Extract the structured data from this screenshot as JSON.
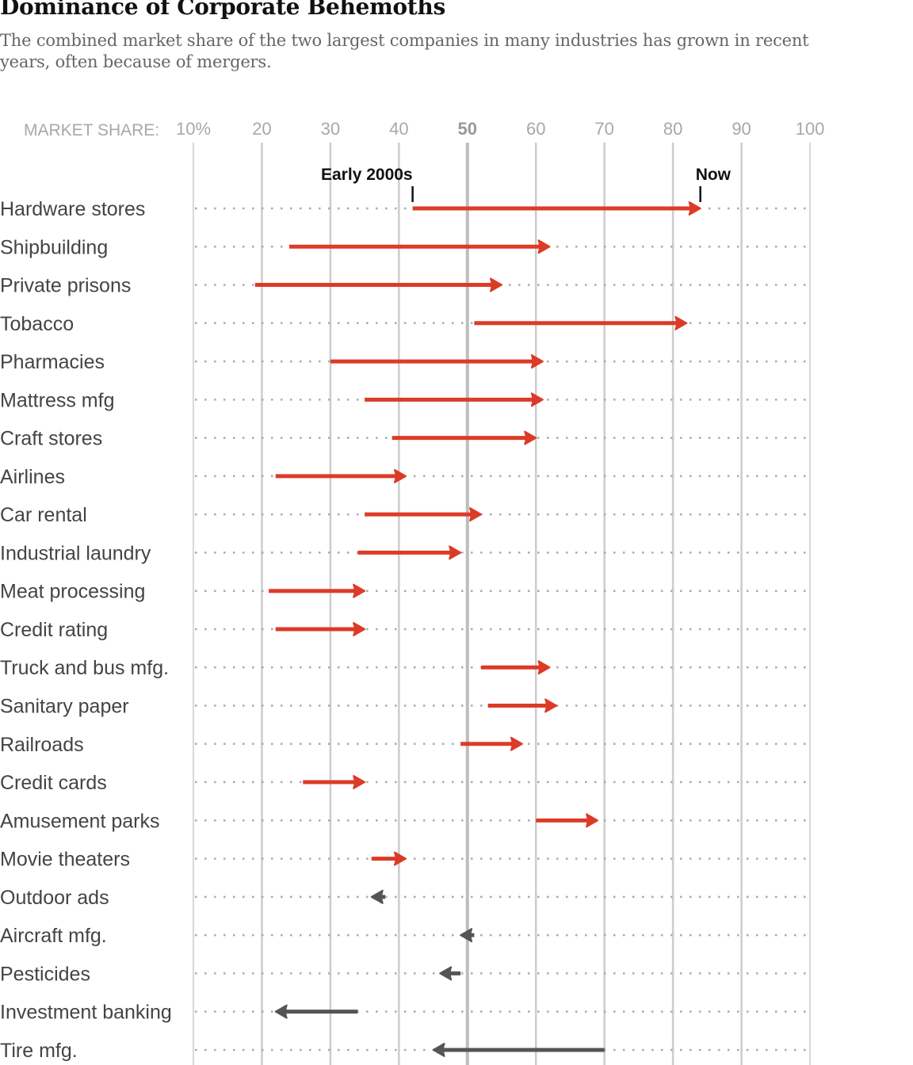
{
  "header": {
    "title": "Dominance of Corporate Behemoths",
    "subtitle": "The combined market share of the two largest companies in many industries has grown in recent years, often because of mergers."
  },
  "chart_data": {
    "type": "arrow-dot",
    "title": "Dominance of Corporate Behemoths",
    "subtitle": "The combined market share of the two largest companies in many industries has grown in recent years, often because of mergers.",
    "xlabel": "MARKET SHARE:",
    "xlim": [
      10,
      100
    ],
    "x_ticks": [
      10,
      20,
      30,
      40,
      50,
      60,
      70,
      80,
      90,
      100
    ],
    "x_tick_labels": [
      "10%",
      "20",
      "30",
      "40",
      "50",
      "60",
      "70",
      "80",
      "90",
      "100"
    ],
    "highlighted_tick": 50,
    "grid": true,
    "annotations": [
      {
        "text": "Early 2000s",
        "row": "Hardware stores",
        "anchor": "start"
      },
      {
        "text": "Now",
        "row": "Hardware stores",
        "anchor": "end"
      }
    ],
    "colors": {
      "increase": "#dc3b27",
      "decrease": "#555555",
      "grid": "#cccccc",
      "grid_50": "#bdbdbd",
      "dots": "#aaaaaa"
    },
    "series": [
      {
        "name": "Early 2000s",
        "key": "start"
      },
      {
        "name": "Now",
        "key": "end"
      }
    ],
    "rows": [
      {
        "label": "Hardware stores",
        "start": 42,
        "end": 84
      },
      {
        "label": "Shipbuilding",
        "start": 24,
        "end": 62
      },
      {
        "label": "Private prisons",
        "start": 19,
        "end": 55
      },
      {
        "label": "Tobacco",
        "start": 51,
        "end": 82
      },
      {
        "label": "Pharmacies",
        "start": 30,
        "end": 61
      },
      {
        "label": "Mattress mfg",
        "start": 35,
        "end": 61
      },
      {
        "label": "Craft stores",
        "start": 39,
        "end": 60
      },
      {
        "label": "Airlines",
        "start": 22,
        "end": 41
      },
      {
        "label": "Car rental",
        "start": 35,
        "end": 52
      },
      {
        "label": "Industrial laundry",
        "start": 34,
        "end": 49
      },
      {
        "label": "Meat processing",
        "start": 21,
        "end": 35
      },
      {
        "label": "Credit rating",
        "start": 22,
        "end": 35
      },
      {
        "label": "Truck and bus mfg.",
        "start": 52,
        "end": 62
      },
      {
        "label": "Sanitary paper",
        "start": 53,
        "end": 63
      },
      {
        "label": "Railroads",
        "start": 49,
        "end": 58
      },
      {
        "label": "Credit cards",
        "start": 26,
        "end": 35
      },
      {
        "label": "Amusement parks",
        "start": 60,
        "end": 69
      },
      {
        "label": "Movie theaters",
        "start": 36,
        "end": 41
      },
      {
        "label": "Outdoor ads",
        "start": 38,
        "end": 36
      },
      {
        "label": "Aircraft mfg.",
        "start": 51,
        "end": 49
      },
      {
        "label": "Pesticides",
        "start": 49,
        "end": 46
      },
      {
        "label": "Investment banking",
        "start": 34,
        "end": 22
      },
      {
        "label": "Tire mfg.",
        "start": 70,
        "end": 45
      }
    ]
  }
}
